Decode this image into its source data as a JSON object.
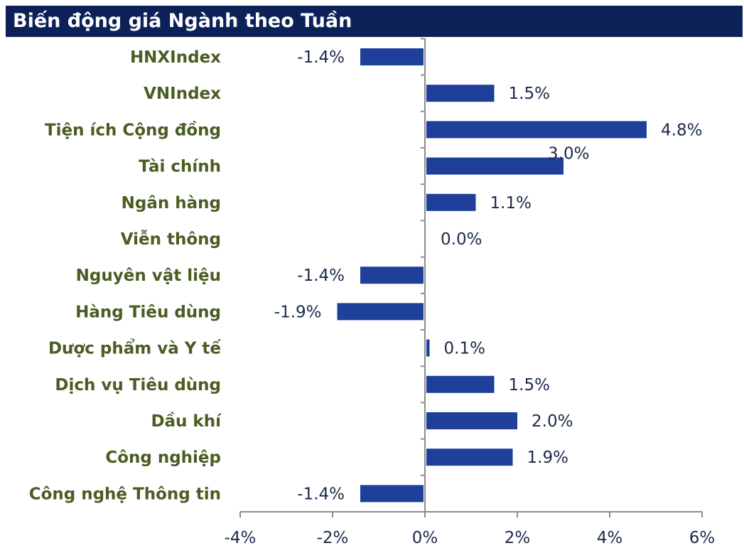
{
  "title": "Biến động giá Ngành theo Tuần",
  "colors": {
    "title_bg": "#0b2157",
    "title_text": "#ffffff",
    "bar": "#1e3f9a",
    "category_text": "#4a5d23",
    "value_text": "#1b2a4a",
    "axis": "#8c8c8c"
  },
  "chart_data": {
    "type": "bar",
    "orientation": "horizontal",
    "categories": [
      "HNXIndex",
      "VNIndex",
      "Tiện ích Cộng đồng",
      "Tài chính",
      "Ngân hàng",
      "Viễn thông",
      "Nguyên vật liệu",
      "Hàng Tiêu dùng",
      "Dược phẩm và Y tế",
      "Dịch vụ Tiêu dùng",
      "Dầu khí",
      "Công nghiệp",
      "Công nghệ Thông tin"
    ],
    "values": [
      -1.4,
      1.5,
      4.8,
      3.0,
      1.1,
      0.0,
      -1.4,
      -1.9,
      0.1,
      1.5,
      2.0,
      1.9,
      -1.4
    ],
    "value_labels": [
      "-1.4%",
      "1.5%",
      "4.8%",
      "3.0%",
      "1.1%",
      "0.0%",
      "-1.4%",
      "-1.9%",
      "0.1%",
      "1.5%",
      "2.0%",
      "1.9%",
      "-1.4%"
    ],
    "xlim": [
      -4,
      6
    ],
    "xticks": [
      -4,
      -2,
      0,
      2,
      4,
      6
    ],
    "xtick_labels": [
      "-4%",
      "-2%",
      "0%",
      "2%",
      "4%",
      "6%"
    ],
    "grid": false,
    "legend": "none"
  }
}
